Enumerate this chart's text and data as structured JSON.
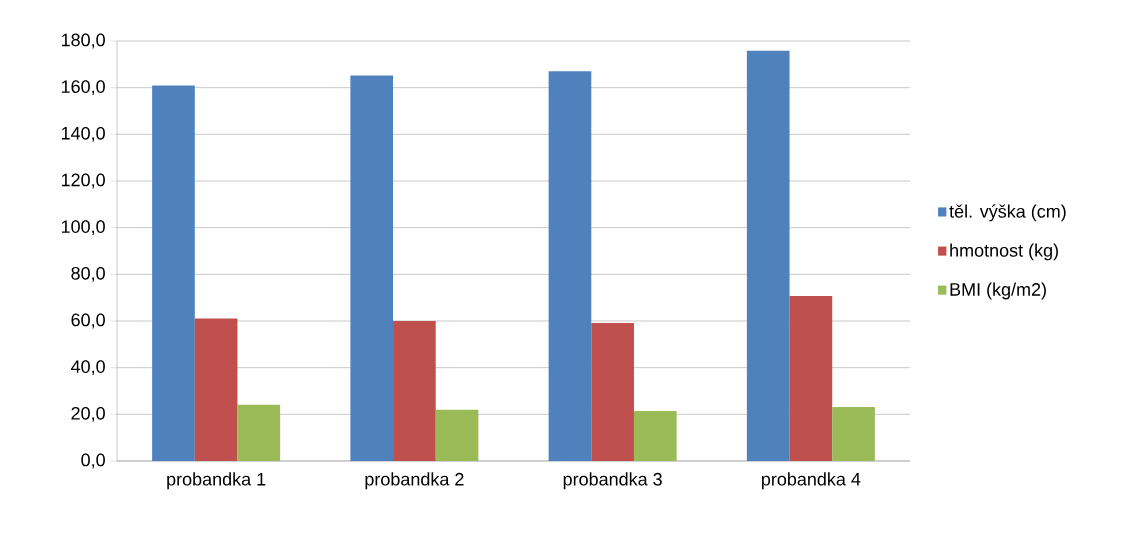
{
  "chart_data": {
    "type": "bar",
    "categories": [
      "probandka 1",
      "probandka 2",
      "probandka 3",
      "probandka 4"
    ],
    "series": [
      {
        "name": "těl. výška (cm)",
        "color": "#4f81bd",
        "values": [
          160.9,
          165.2,
          167.0,
          175.8
        ]
      },
      {
        "name": "hmotnost (kg)",
        "color": "#c0504d",
        "values": [
          61.1,
          60.0,
          59.1,
          70.7
        ]
      },
      {
        "name": "BMI (kg/m2)",
        "color": "#9bbb59",
        "values": [
          24.1,
          22.0,
          21.4,
          23.1
        ]
      }
    ],
    "ylim": [
      0,
      180
    ],
    "yticks": [
      {
        "value": 0,
        "label": "0,0"
      },
      {
        "value": 20,
        "label": "20,0"
      },
      {
        "value": 40,
        "label": "40,0"
      },
      {
        "value": 60,
        "label": "60,0"
      },
      {
        "value": 80,
        "label": "80,0"
      },
      {
        "value": 100,
        "label": "100,0"
      },
      {
        "value": 120,
        "label": "120,0"
      },
      {
        "value": 140,
        "label": "140,0"
      },
      {
        "value": 160,
        "label": "160,0"
      },
      {
        "value": 180,
        "label": "180,0"
      }
    ],
    "grid": "y",
    "legend": "right"
  }
}
